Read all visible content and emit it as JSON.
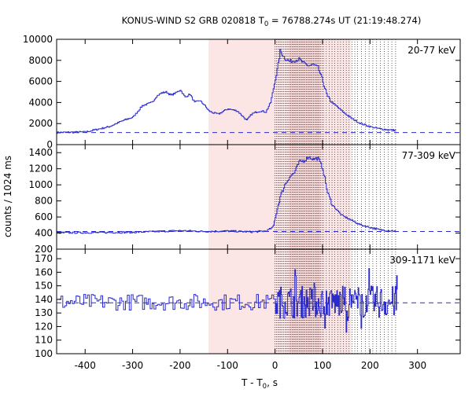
{
  "chart_data": {
    "type": "line",
    "title": "KONUS-WIND S2 GRB 020818 T",
    "title_sub": "0",
    "title_rest": " = 76788.274s UT (21:19:48.274)",
    "xlabel_main": "T - T",
    "xlabel_sub": "0",
    "xlabel_rest": ", s",
    "ylabel": "counts / 1024 ms",
    "xlim": [
      -460,
      390
    ],
    "xticks": [
      "-400",
      "-300",
      "-200",
      "-100",
      "0",
      "100",
      "200",
      "300"
    ],
    "xtick_values": [
      -400,
      -300,
      -200,
      -100,
      0,
      100,
      200,
      300
    ],
    "shaded_interval": [
      -140,
      160
    ],
    "dotted_lines_range": [
      0,
      255
    ],
    "series_color": "#2b2bcc",
    "shade_color": "#fbe5e5",
    "dense_shade_color": "#f2c8c8",
    "panels": [
      {
        "name": "20-77 keV",
        "ylim": [
          0,
          10000
        ],
        "yticks": [
          "0",
          "2000",
          "4000",
          "6000",
          "8000",
          "10000"
        ],
        "ytick_values": [
          0,
          2000,
          4000,
          6000,
          8000,
          10000
        ],
        "background": 1150,
        "x": [
          -460,
          -400,
          -350,
          -320,
          -300,
          -280,
          -260,
          -250,
          -240,
          -230,
          -220,
          -210,
          -200,
          -190,
          -180,
          -170,
          -160,
          -150,
          -140,
          -130,
          -120,
          -100,
          -80,
          -60,
          -50,
          -40,
          -30,
          -20,
          -10,
          0,
          5,
          10,
          20,
          30,
          40,
          50,
          60,
          70,
          80,
          90,
          100,
          110,
          120,
          140,
          160,
          180,
          200,
          220,
          240,
          255
        ],
        "values": [
          1150,
          1200,
          1700,
          2300,
          2600,
          3700,
          4000,
          4600,
          4900,
          5000,
          4700,
          4900,
          5200,
          4500,
          4800,
          4000,
          4200,
          3800,
          3200,
          3000,
          2900,
          3400,
          3200,
          2300,
          2900,
          3100,
          3200,
          3100,
          4000,
          6200,
          7300,
          8900,
          8200,
          7900,
          8000,
          8100,
          7700,
          7500,
          7600,
          7300,
          6000,
          4500,
          4000,
          3200,
          2500,
          2000,
          1700,
          1500,
          1400,
          1350
        ]
      },
      {
        "name": "77-309 keV",
        "ylim": [
          200,
          1500
        ],
        "yticks": [
          "200",
          "400",
          "600",
          "800",
          "1000",
          "1200",
          "1400"
        ],
        "ytick_values": [
          200,
          400,
          600,
          800,
          1000,
          1200,
          1400
        ],
        "background": 420,
        "x": [
          -460,
          -400,
          -300,
          -200,
          -150,
          -100,
          -50,
          -20,
          -5,
          0,
          10,
          20,
          30,
          40,
          50,
          60,
          70,
          80,
          90,
          100,
          110,
          120,
          140,
          160,
          180,
          200,
          220,
          240,
          255
        ],
        "values": [
          405,
          405,
          410,
          430,
          420,
          425,
          415,
          425,
          470,
          600,
          850,
          1000,
          1100,
          1150,
          1280,
          1300,
          1350,
          1320,
          1330,
          1200,
          900,
          750,
          620,
          560,
          500,
          470,
          440,
          430,
          425
        ]
      },
      {
        "name": "309-1171 keV",
        "ylim": [
          100,
          177
        ],
        "yticks": [
          "100",
          "110",
          "120",
          "130",
          "140",
          "150",
          "160",
          "170"
        ],
        "ytick_values": [
          100,
          110,
          120,
          130,
          140,
          150,
          160,
          170
        ],
        "background": 137.5,
        "x_range": [
          -455,
          258
        ],
        "mean": 138,
        "noise_pre": 6,
        "noise_post": 12
      }
    ]
  }
}
